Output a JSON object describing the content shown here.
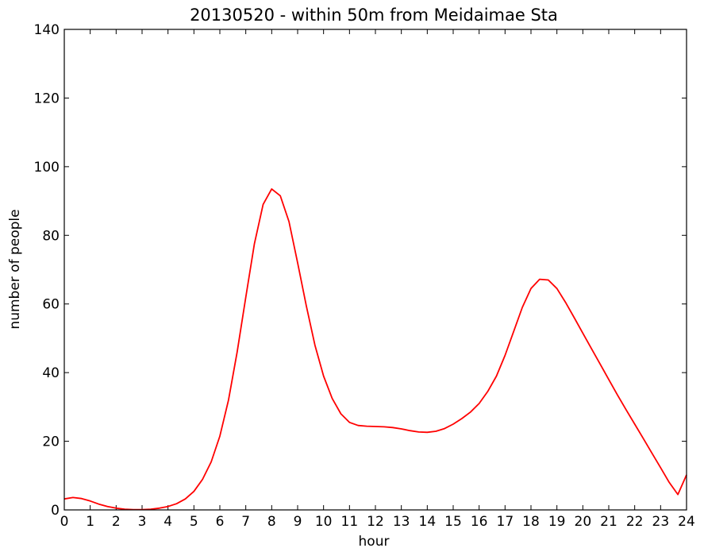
{
  "chart_data": {
    "type": "line",
    "title": "20130520 - within 50m from Meidaimae Sta",
    "xlabel": "hour",
    "ylabel": "number of people",
    "xlim": [
      0,
      24
    ],
    "ylim": [
      0,
      140
    ],
    "xticks": [
      0,
      1,
      2,
      3,
      4,
      5,
      6,
      7,
      8,
      9,
      10,
      11,
      12,
      13,
      14,
      15,
      16,
      17,
      18,
      19,
      20,
      21,
      22,
      23,
      24
    ],
    "yticks": [
      0,
      20,
      40,
      60,
      80,
      100,
      120,
      140
    ],
    "grid": false,
    "series": [
      {
        "color": "#ff0000",
        "x": [
          0,
          0.333,
          0.667,
          1,
          1.333,
          1.667,
          2,
          2.333,
          2.667,
          3,
          3.333,
          3.667,
          4,
          4.333,
          4.667,
          5,
          5.333,
          5.667,
          6,
          6.333,
          6.667,
          7,
          7.333,
          7.667,
          8,
          8.333,
          8.667,
          9,
          9.333,
          9.667,
          10,
          10.333,
          10.667,
          11,
          11.333,
          11.667,
          12,
          12.333,
          12.667,
          13,
          13.333,
          13.667,
          14,
          14.333,
          14.667,
          15,
          15.333,
          15.667,
          16,
          16.333,
          16.667,
          17,
          17.333,
          17.667,
          18,
          18.333,
          18.667,
          19,
          19.333,
          19.667,
          20,
          20.333,
          20.667,
          21,
          21.333,
          21.667,
          22,
          22.333,
          22.667,
          23,
          23.333,
          23.667,
          24
        ],
        "y": [
          3.2,
          3.6,
          3.3,
          2.6,
          1.7,
          1.0,
          0.5,
          0.2,
          0.1,
          0.1,
          0.2,
          0.5,
          1.0,
          1.8,
          3.2,
          5.4,
          8.9,
          14.0,
          21.5,
          32.0,
          46.0,
          62.0,
          77.5,
          89.0,
          93.5,
          91.5,
          84.0,
          72.0,
          59.5,
          48.0,
          39.0,
          32.5,
          28.0,
          25.5,
          24.6,
          24.4,
          24.3,
          24.2,
          24.0,
          23.6,
          23.1,
          22.7,
          22.6,
          22.9,
          23.7,
          25.0,
          26.6,
          28.5,
          31.0,
          34.5,
          39.0,
          45.0,
          52.0,
          59.0,
          64.5,
          67.2,
          67.0,
          64.5,
          60.5,
          56.0,
          51.5,
          47.0,
          42.5,
          38.0,
          33.5,
          29.2,
          25.0,
          20.8,
          16.5,
          12.3,
          8.0,
          4.5,
          10.2
        ]
      }
    ]
  }
}
